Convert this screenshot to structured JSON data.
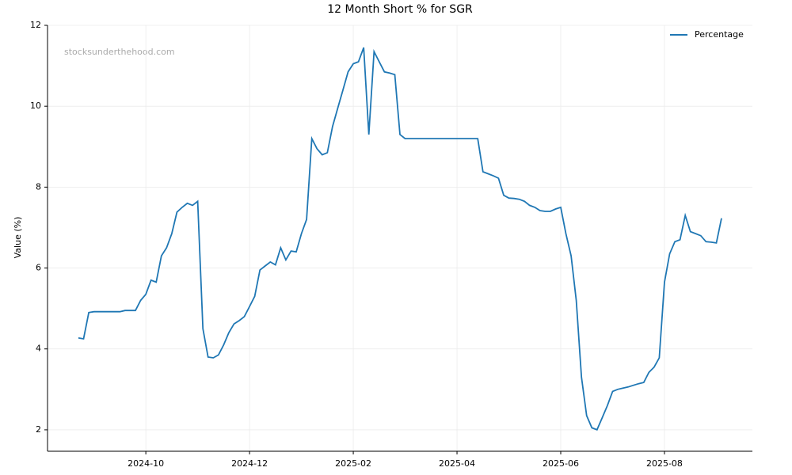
{
  "chart_data": {
    "type": "line",
    "title": "12 Month Short % for SGR",
    "ylabel": "Value (%)",
    "watermark": "stocksunderthehood.com",
    "categories": [
      null,
      null,
      null,
      null,
      null,
      null,
      null,
      null,
      null,
      null,
      null,
      null,
      null,
      "2024-10",
      null,
      null,
      null,
      null,
      null,
      null,
      null,
      null,
      null,
      null,
      null,
      null,
      null,
      null,
      null,
      null,
      null,
      null,
      null,
      "2024-12",
      null,
      null,
      null,
      null,
      null,
      null,
      null,
      null,
      null,
      null,
      null,
      null,
      null,
      null,
      null,
      null,
      null,
      null,
      null,
      "2025-02",
      null,
      null,
      null,
      null,
      null,
      null,
      null,
      null,
      null,
      null,
      null,
      null,
      null,
      null,
      null,
      null,
      null,
      null,
      null,
      "2025-04",
      null,
      null,
      null,
      null,
      null,
      null,
      null,
      null,
      null,
      null,
      null,
      null,
      null,
      null,
      null,
      null,
      null,
      null,
      null,
      "2025-06",
      null,
      null,
      null,
      null,
      null,
      null,
      null,
      null,
      null,
      null,
      null,
      null,
      null,
      null,
      null,
      null,
      null,
      null,
      null,
      "2025-08",
      null,
      null,
      null,
      null,
      null,
      null,
      null,
      null,
      null,
      null,
      null
    ],
    "series": [
      {
        "name": "Percentage",
        "color": "#1f77b4",
        "values": [
          4.27,
          4.25,
          4.9,
          4.92,
          4.92,
          4.92,
          4.92,
          4.92,
          4.92,
          4.95,
          4.95,
          4.95,
          5.2,
          5.35,
          5.7,
          5.65,
          6.3,
          6.5,
          6.85,
          7.38,
          7.5,
          7.6,
          7.55,
          7.65,
          4.5,
          3.8,
          3.78,
          3.85,
          4.1,
          4.4,
          4.62,
          4.7,
          4.8,
          5.05,
          5.3,
          5.95,
          6.05,
          6.15,
          6.08,
          6.5,
          6.2,
          6.42,
          6.4,
          6.85,
          7.2,
          9.2,
          8.95,
          8.8,
          8.85,
          9.5,
          9.95,
          10.4,
          10.85,
          11.05,
          11.1,
          11.45,
          9.3,
          11.35,
          11.1,
          10.85,
          10.82,
          10.78,
          9.3,
          9.2,
          9.2,
          9.2,
          9.2,
          9.2,
          9.2,
          9.2,
          9.2,
          9.2,
          9.2,
          9.2,
          9.2,
          9.2,
          9.2,
          9.2,
          8.38,
          8.33,
          8.28,
          8.22,
          7.8,
          7.73,
          7.72,
          7.7,
          7.65,
          7.55,
          7.5,
          7.42,
          7.4,
          7.4,
          7.46,
          7.5,
          6.85,
          6.3,
          5.2,
          3.3,
          2.35,
          2.05,
          2.0,
          2.3,
          2.6,
          2.95,
          3.0,
          3.03,
          3.06,
          3.1,
          3.14,
          3.17,
          3.42,
          3.55,
          3.78,
          5.65,
          6.35,
          6.65,
          6.7,
          7.3,
          6.9,
          6.85,
          6.8,
          6.65,
          6.64,
          6.62,
          7.23
        ]
      }
    ],
    "ylim": [
      1.47,
      12.0
    ],
    "yticks": [
      2,
      4,
      6,
      8,
      10,
      12
    ],
    "grid": true,
    "legend": "upper right"
  }
}
